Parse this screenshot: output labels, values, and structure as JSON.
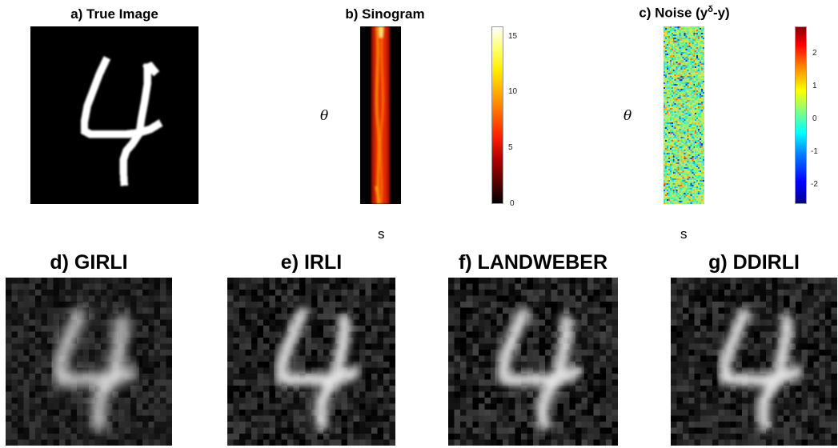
{
  "panels": {
    "a": {
      "title": "a) True Image"
    },
    "b": {
      "title": "b) Sinogram",
      "ylabel": "θ",
      "xlabel": "s"
    },
    "c": {
      "title_prefix": "c) Noise (y",
      "title_sup": "δ",
      "title_suffix": "-y)",
      "ylabel": "θ",
      "xlabel": "s"
    },
    "d": {
      "title": "d) GIRLI"
    },
    "e": {
      "title": "e) IRLI"
    },
    "f": {
      "title": "f) LANDWEBER"
    },
    "g": {
      "title": "g) DDIRLI"
    }
  },
  "colorbars": {
    "sinogram": {
      "colormap": "hot",
      "range": [
        0,
        16
      ],
      "ticks": [
        "15",
        "10",
        "5",
        "0"
      ],
      "tick_values": [
        15,
        10,
        5,
        0
      ]
    },
    "noise": {
      "colormap": "jet",
      "range": [
        -2.7,
        2.7
      ],
      "ticks": [
        "2",
        "1",
        "0",
        "-1",
        "-2"
      ],
      "tick_values": [
        2,
        1,
        0,
        -1,
        -2
      ]
    }
  }
}
